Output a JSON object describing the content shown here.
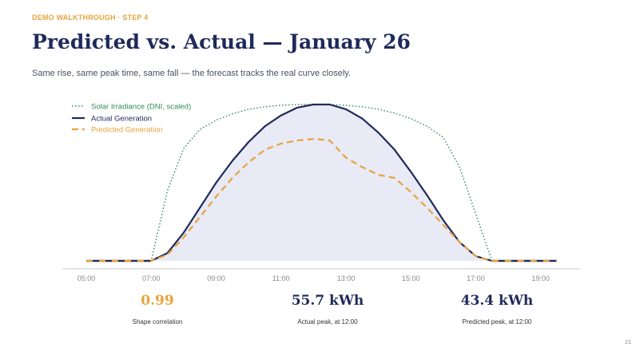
{
  "header": {
    "step": "DEMO WALKTHROUGH · STEP 4",
    "title": "Predicted vs. Actual — January 26",
    "subtitle": "Same rise, same peak time, same fall — the forecast tracks the real curve closely."
  },
  "colors": {
    "irradiance": "#2e8b57",
    "actual": "#1f2a5a",
    "predicted": "#e8a33d",
    "fill": "#e8eaf6",
    "accent_orange": "#e8a33d",
    "navy": "#1f2a5a"
  },
  "chart_data": {
    "type": "line",
    "title": "",
    "xlabel": "",
    "ylabel": "",
    "xlim": [
      4.5,
      20.0
    ],
    "ylim": [
      0,
      1.0
    ],
    "x_ticks": [
      "05:00",
      "07:00",
      "09:00",
      "11:00",
      "13:00",
      "15:00",
      "17:00",
      "19:00"
    ],
    "grid": false,
    "legend_position": "top-left",
    "x": [
      5.0,
      5.5,
      6.0,
      6.5,
      7.0,
      7.5,
      8.0,
      8.5,
      9.0,
      9.5,
      10.0,
      10.5,
      11.0,
      11.5,
      12.0,
      12.5,
      13.0,
      13.5,
      14.0,
      14.5,
      15.0,
      15.5,
      16.0,
      16.5,
      17.0,
      17.5,
      18.0,
      18.5,
      19.0,
      19.5
    ],
    "series": [
      {
        "name": "Solar Irradiance (DNI, scaled)",
        "style": "dotted",
        "values": [
          0,
          0,
          0,
          0,
          0.0,
          0.45,
          0.72,
          0.84,
          0.9,
          0.94,
          0.97,
          0.985,
          0.995,
          1.0,
          1.0,
          1.0,
          0.995,
          0.985,
          0.97,
          0.945,
          0.91,
          0.86,
          0.79,
          0.6,
          0.3,
          0.0,
          0,
          0,
          0,
          0
        ]
      },
      {
        "name": "Actual Generation",
        "style": "solid",
        "values": [
          0,
          0,
          0,
          0,
          0.0,
          0.05,
          0.18,
          0.34,
          0.5,
          0.64,
          0.76,
          0.86,
          0.93,
          0.98,
          1.0,
          1.0,
          0.97,
          0.91,
          0.82,
          0.71,
          0.57,
          0.42,
          0.26,
          0.12,
          0.03,
          0.0,
          0,
          0,
          0,
          0
        ]
      },
      {
        "name": "Predicted Generation",
        "style": "dashed",
        "values": [
          0,
          0,
          0,
          0,
          0.0,
          0.04,
          0.15,
          0.28,
          0.41,
          0.53,
          0.63,
          0.71,
          0.75,
          0.77,
          0.78,
          0.77,
          0.66,
          0.6,
          0.55,
          0.53,
          0.44,
          0.34,
          0.23,
          0.12,
          0.03,
          0.0,
          0,
          0,
          0,
          0
        ]
      }
    ]
  },
  "stats": [
    {
      "value": "0.99",
      "label": "Shape correlation",
      "color": "#e8a33d"
    },
    {
      "value": "55.7 kWh",
      "label": "Actual peak, at 12:00",
      "color": "#1f2a5a"
    },
    {
      "value": "43.4 kWh",
      "label": "Predicted peak, at 12:00",
      "color": "#1f2a5a"
    }
  ],
  "page_number": "21"
}
